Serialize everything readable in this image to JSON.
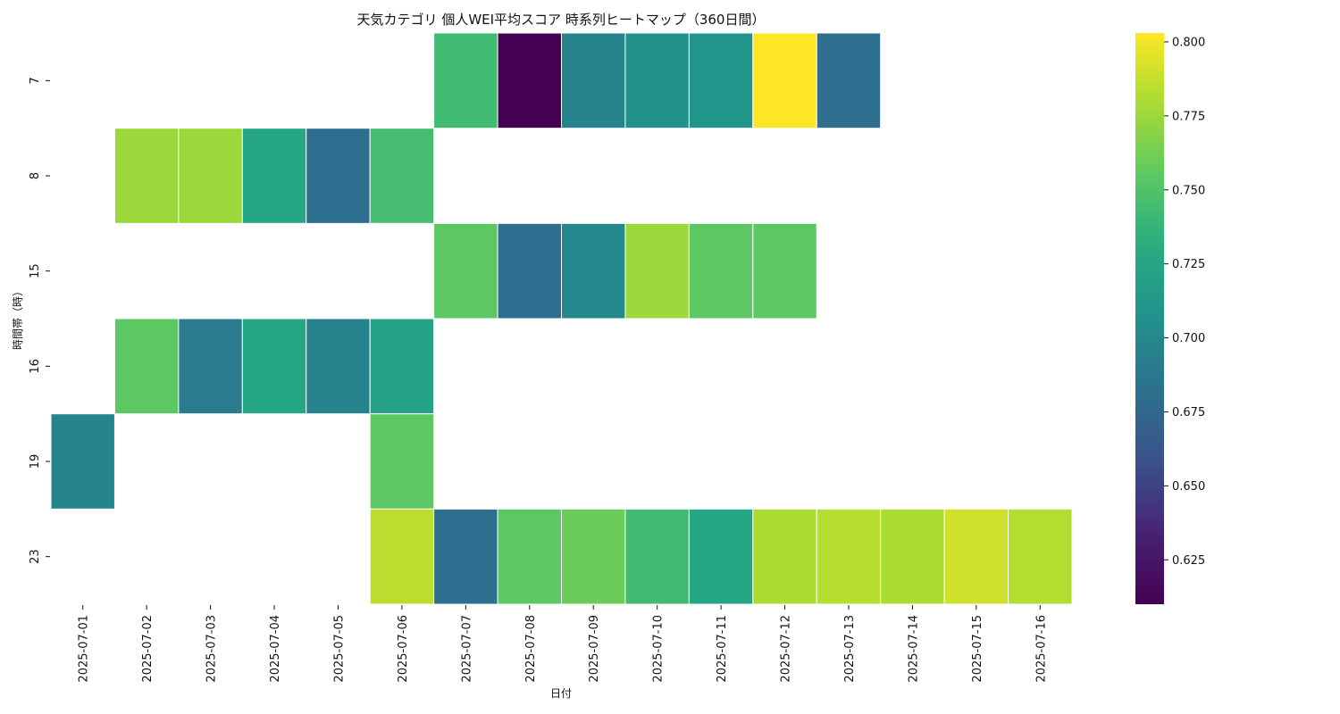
{
  "chart_data": {
    "type": "heatmap",
    "title": "天気カテゴリ 個人WEI平均スコア 時系列ヒートマップ（360日間）",
    "xlabel": "日付",
    "ylabel": "時間帯（時）",
    "x": [
      "2025-07-01",
      "2025-07-02",
      "2025-07-03",
      "2025-07-04",
      "2025-07-05",
      "2025-07-06",
      "2025-07-07",
      "2025-07-08",
      "2025-07-09",
      "2025-07-10",
      "2025-07-11",
      "2025-07-12",
      "2025-07-13",
      "2025-07-14",
      "2025-07-15",
      "2025-07-16"
    ],
    "y": [
      "7",
      "8",
      "15",
      "16",
      "19",
      "23"
    ],
    "values": [
      [
        null,
        null,
        null,
        null,
        null,
        null,
        0.743,
        0.61,
        0.697,
        0.708,
        0.71,
        0.803,
        0.68,
        null,
        null,
        null
      ],
      [
        null,
        0.775,
        0.775,
        0.725,
        0.68,
        0.745,
        null,
        null,
        null,
        null,
        null,
        null,
        null,
        null,
        null,
        null
      ],
      [
        null,
        null,
        null,
        null,
        null,
        null,
        0.755,
        0.68,
        0.7,
        0.775,
        0.755,
        0.755,
        null,
        null,
        null,
        null
      ],
      [
        null,
        0.755,
        0.69,
        0.725,
        0.695,
        0.722,
        null,
        null,
        null,
        null,
        null,
        null,
        null,
        null,
        null,
        null
      ],
      [
        0.697,
        null,
        null,
        null,
        null,
        0.755,
        null,
        null,
        null,
        null,
        null,
        null,
        null,
        null,
        null,
        null
      ],
      [
        null,
        null,
        null,
        null,
        null,
        0.785,
        0.68,
        0.755,
        0.76,
        0.743,
        0.725,
        0.78,
        0.783,
        0.78,
        0.79,
        0.782
      ]
    ],
    "colorbar": {
      "vmin": 0.61,
      "vmax": 0.803,
      "ticks": [
        "0.625",
        "0.650",
        "0.675",
        "0.700",
        "0.725",
        "0.750",
        "0.775",
        "0.800"
      ],
      "colormap": "viridis"
    },
    "grid": false
  }
}
